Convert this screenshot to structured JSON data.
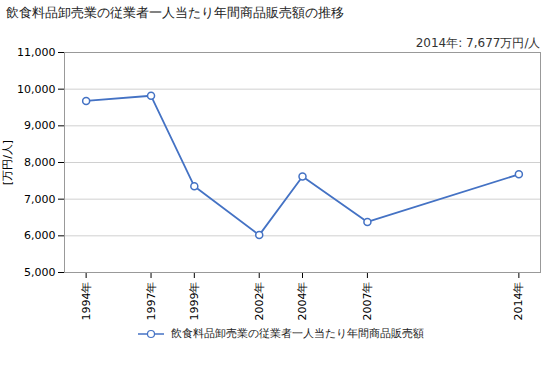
{
  "chart_data": {
    "type": "line",
    "title": "飲食料品卸売業の従業者一人当たり年間商品販売額の推移",
    "ylabel": "[万円/人]",
    "annotation": "2014年: 7,677万円/人",
    "x": [
      1994,
      1997,
      1999,
      2002,
      2004,
      2007,
      2014
    ],
    "series": [
      {
        "name": "飲食料品卸売業の従業者一人当たり年間商品販売額",
        "color": "#4472C4",
        "marker": "open circle",
        "values": [
          9680,
          9820,
          7350,
          6020,
          7620,
          6380,
          7677
        ]
      }
    ],
    "xlim": [
      1993,
      2015
    ],
    "xticks": [
      {
        "value": 1994,
        "label": "1994年"
      },
      {
        "value": 1997,
        "label": "1997年"
      },
      {
        "value": 1999,
        "label": "1999年"
      },
      {
        "value": 2002,
        "label": "2002年"
      },
      {
        "value": 2004,
        "label": "2004年"
      },
      {
        "value": 2007,
        "label": "2007年"
      },
      {
        "value": 2014,
        "label": "2014年"
      }
    ],
    "ylim": [
      5000,
      11000
    ],
    "yticks": [
      {
        "value": 5000,
        "label": "5,000"
      },
      {
        "value": 6000,
        "label": "6,000"
      },
      {
        "value": 7000,
        "label": "7,000"
      },
      {
        "value": 8000,
        "label": "8,000"
      },
      {
        "value": 9000,
        "label": "9,000"
      },
      {
        "value": 10000,
        "label": "10,000"
      },
      {
        "value": 11000,
        "label": "11,000"
      }
    ],
    "grid": true,
    "legend": "bottom"
  }
}
